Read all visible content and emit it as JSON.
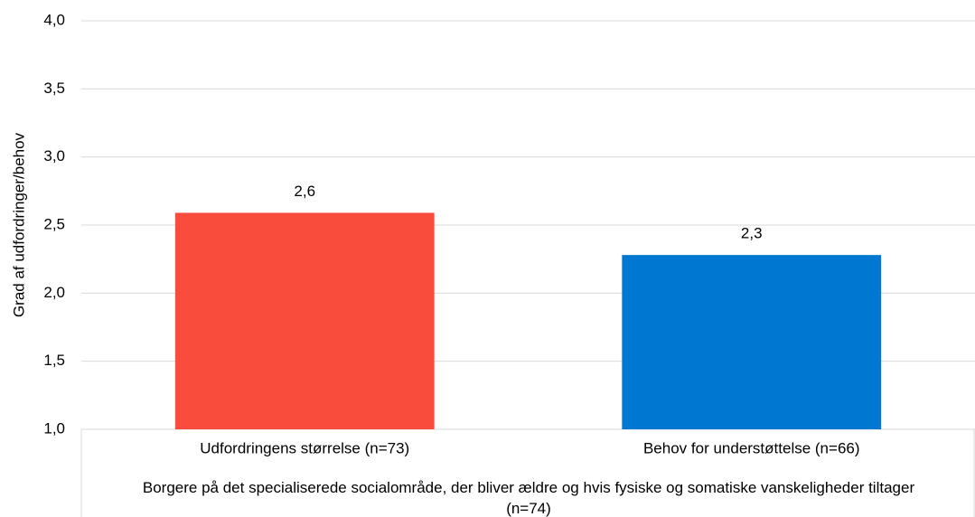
{
  "chart_data": {
    "type": "bar",
    "y_label": "Grad af udfordringer/behov",
    "categories": [
      "Udfordringens størrelse (n=73)",
      "Behov for understøttelse (n=66)"
    ],
    "group_label": "Borgere på det specialiserede socialområde, der bliver ældre og hvis fysiske og somatiske vanskeligheder tiltager (n=74)",
    "values": [
      2.59,
      2.28
    ],
    "value_labels": [
      "2,6",
      "2,3"
    ],
    "colors": [
      "#f94c3c",
      "#0077d0"
    ],
    "ylim": [
      1.0,
      4.0
    ],
    "yticks": [
      {
        "value": 1.0,
        "label": "1,0"
      },
      {
        "value": 1.5,
        "label": "1,5"
      },
      {
        "value": 2.0,
        "label": "2,0"
      },
      {
        "value": 2.5,
        "label": "2,5"
      },
      {
        "value": 3.0,
        "label": "3,0"
      },
      {
        "value": 3.5,
        "label": "3,5"
      },
      {
        "value": 4.0,
        "label": "4,0"
      }
    ],
    "grid": true
  }
}
